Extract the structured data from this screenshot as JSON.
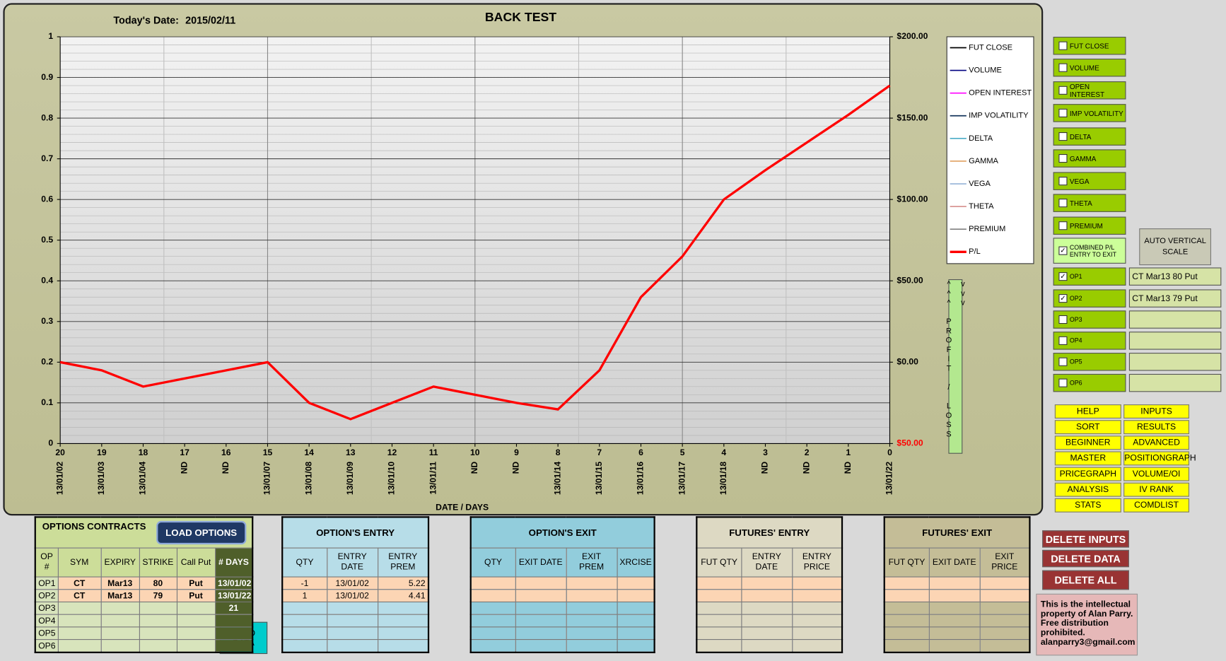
{
  "chart_data": {
    "type": "line",
    "title": "BACK TEST",
    "date_label": "Today's Date:",
    "date_value": "2015/02/11",
    "x_label": "DATE / DAYS",
    "y2_label": "^^^ PROFIT / LOSS vvv",
    "categories": [
      "20",
      "19",
      "18",
      "17",
      "16",
      "15",
      "14",
      "13",
      "12",
      "11",
      "10",
      "9",
      "8",
      "7",
      "6",
      "5",
      "4",
      "3",
      "2",
      "1",
      "0"
    ],
    "dates": [
      "13/01/02",
      "13/01/03",
      "13/01/04",
      "ND",
      "ND",
      "13/01/07",
      "13/01/08",
      "13/01/09",
      "13/01/10",
      "13/01/11",
      "ND",
      "ND",
      "13/01/14",
      "13/01/15",
      "13/01/16",
      "13/01/17",
      "13/01/18",
      "ND",
      "ND",
      "ND",
      "13/01/22"
    ],
    "ylim": [
      0,
      1
    ],
    "yticks": [
      0,
      0.1,
      0.2,
      0.3,
      0.4,
      0.5,
      0.6,
      0.7,
      0.8,
      0.9,
      1
    ],
    "y2lim": [
      -50,
      200
    ],
    "y2ticks": [
      {
        "value": -50,
        "label": "$50.00"
      },
      {
        "value": 0,
        "label": "$0.00"
      },
      {
        "value": 50,
        "label": "$50.00"
      },
      {
        "value": 100,
        "label": "$100.00"
      },
      {
        "value": 150,
        "label": "$150.00"
      },
      {
        "value": 200,
        "label": "$200.00"
      }
    ],
    "grid": true,
    "series": [
      {
        "name": "FUT CLOSE",
        "color": "#000000"
      },
      {
        "name": "VOLUME",
        "color": "#000080"
      },
      {
        "name": "OPEN INTEREST",
        "color": "#ff00ff"
      },
      {
        "name": "IMP VOLATILITY",
        "color": "#17375e"
      },
      {
        "name": "DELTA",
        "color": "#4bacc6"
      },
      {
        "name": "GAMMA",
        "color": "#e0a060"
      },
      {
        "name": "VEGA",
        "color": "#95b3d7"
      },
      {
        "name": "THETA",
        "color": "#d99694"
      },
      {
        "name": "PREMIUM",
        "color": "#808080"
      },
      {
        "name": "P/L",
        "color": "#ff0000",
        "axis": "y2",
        "values": [
          0,
          -5,
          -15,
          -10,
          -5,
          0,
          -25,
          -35,
          -25,
          -15,
          -20,
          -25,
          -29,
          -5,
          40,
          65,
          100,
          118,
          135,
          152,
          170
        ]
      }
    ]
  },
  "display_options": [
    {
      "label": "FUT CLOSE",
      "checked": false
    },
    {
      "label": "VOLUME",
      "checked": false
    },
    {
      "label": "OPEN  INTEREST",
      "checked": false
    },
    {
      "label": "IMP VOLATILITY",
      "checked": false
    },
    {
      "label": "DELTA",
      "checked": false
    },
    {
      "label": "GAMMA",
      "checked": false
    },
    {
      "label": "VEGA",
      "checked": false
    },
    {
      "label": "THETA",
      "checked": false
    },
    {
      "label": "PREMIUM",
      "checked": false
    },
    {
      "label": "COMBINED  P/L ENTRY TO  EXIT",
      "checked": true
    }
  ],
  "auto_scale_button": "AUTO VERTICAL SCALE",
  "option_slots": [
    {
      "label": "OP1",
      "checked": true,
      "contract": "CT Mar13 80 Put"
    },
    {
      "label": "OP2",
      "checked": true,
      "contract": "CT Mar13 79 Put"
    },
    {
      "label": "OP3",
      "checked": false
    },
    {
      "label": "OP4",
      "checked": false
    },
    {
      "label": "OP5",
      "checked": false
    },
    {
      "label": "OP6",
      "checked": false
    }
  ],
  "menu_buttons": [
    "HELP",
    "INPUTS",
    "SORT",
    "RESULTS",
    "BEGINNER",
    "ADVANCED",
    "MASTER",
    "POSITIONGRAPH",
    "PRICEGRAPH",
    "VOLUME/OI",
    "ANALYSIS",
    "IV RANK",
    "STATS",
    "COMDLIST"
  ],
  "delete_buttons": [
    "DELETE INPUTS",
    "DELETE DATA",
    "DELETE ALL"
  ],
  "notice": "This is the intellectual property of Alan Parry. Free distribution prohibited. alanparry3@gmail.com",
  "load_data_button": "LOAD DATA",
  "tables": [
    {
      "title": "OPTIONS CONTRACTS",
      "button": "LOAD OPTIONS",
      "columns": [
        "OP #",
        "SYM",
        "EXPIRY",
        "STRIKE",
        "Call  Put",
        "# DAYS"
      ],
      "rows": [
        [
          "OP1",
          "CT",
          "Mar13",
          80,
          "Put",
          "13/01/02"
        ],
        [
          "OP2",
          "CT",
          "Mar13",
          79,
          "Put",
          "13/01/22"
        ],
        [
          "OP3",
          null,
          null,
          null,
          null,
          21
        ],
        [
          "OP4",
          null,
          null,
          null,
          null,
          null
        ],
        [
          "OP5",
          null,
          null,
          null,
          null,
          null
        ],
        [
          "OP6",
          null,
          null,
          null,
          null,
          null
        ]
      ]
    },
    {
      "title": "OPTION'S ENTRY",
      "columns": [
        "QTY",
        "ENTRY DATE",
        "ENTRY PREM"
      ],
      "rows": [
        [
          -1,
          "13/01/02",
          5.22
        ],
        [
          1,
          "13/01/02",
          4.41
        ],
        [
          null,
          null,
          null
        ],
        [
          null,
          null,
          null
        ],
        [
          null,
          null,
          null
        ],
        [
          null,
          null,
          null
        ]
      ]
    },
    {
      "title": "OPTION'S EXIT",
      "columns": [
        "QTY",
        "EXIT DATE",
        "EXIT PREM",
        "XRCISE"
      ],
      "rows": [
        [
          null,
          null,
          null,
          null
        ],
        [
          null,
          null,
          null,
          null
        ],
        [
          null,
          null,
          null,
          null
        ],
        [
          null,
          null,
          null,
          null
        ],
        [
          null,
          null,
          null,
          null
        ],
        [
          null,
          null,
          null,
          null
        ]
      ]
    },
    {
      "title": "FUTURES' ENTRY",
      "columns": [
        "FUT QTY",
        "ENTRY DATE",
        "ENTRY PRICE"
      ],
      "rows": [
        [
          null,
          null,
          null
        ],
        [
          null,
          null,
          null
        ],
        [
          null,
          null,
          null
        ],
        [
          null,
          null,
          null
        ],
        [
          null,
          null,
          null
        ],
        [
          null,
          null,
          null
        ]
      ]
    },
    {
      "title": "FUTURES' EXIT",
      "columns": [
        "FUT QTY",
        "EXIT DATE",
        "EXIT PRICE"
      ],
      "rows": [
        [
          null,
          null,
          null
        ],
        [
          null,
          null,
          null
        ],
        [
          null,
          null,
          null
        ],
        [
          null,
          null,
          null
        ],
        [
          null,
          null,
          null
        ],
        [
          null,
          null,
          null
        ]
      ]
    }
  ]
}
